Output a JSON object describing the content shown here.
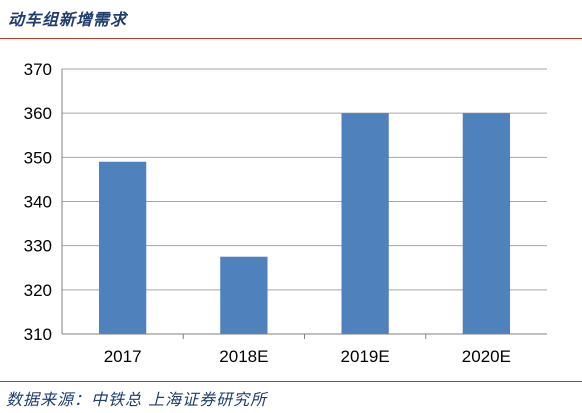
{
  "header": {
    "title": "动车组新增需求"
  },
  "footer": {
    "source": "数据来源：中铁总  上海证券研究所"
  },
  "colors": {
    "bar": "#4f81bd",
    "grid": "#a6a6a6",
    "rule": "#c0392b",
    "text_blue": "#1f3d6e"
  },
  "chart_data": {
    "type": "bar",
    "title": "动车组新增需求",
    "xlabel": "",
    "ylabel": "",
    "categories": [
      "2017",
      "2018E",
      "2019E",
      "2020E"
    ],
    "values": [
      349,
      327.5,
      360,
      360
    ],
    "ylim": [
      310,
      370
    ],
    "yticks": [
      310,
      320,
      330,
      340,
      350,
      360,
      370
    ],
    "grid": true,
    "legend": "none"
  }
}
